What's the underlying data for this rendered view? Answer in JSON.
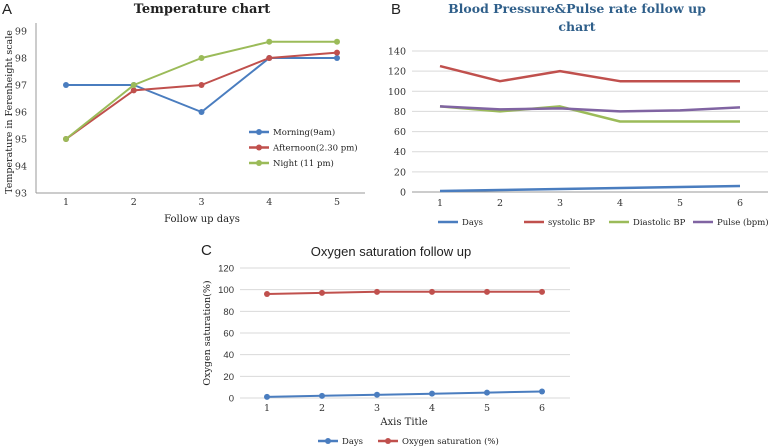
{
  "chart_data": [
    {
      "panel": "A",
      "type": "line",
      "title": "Temperature chart",
      "xlabel": "Follow up days",
      "ylabel": "Temperature in Ferenheight scale",
      "x": [
        1,
        2,
        3,
        4,
        5
      ],
      "ylim": [
        93,
        99
      ],
      "yticks": [
        93,
        94,
        95,
        96,
        97,
        98,
        99
      ],
      "legend_position": "center-right",
      "markers": true,
      "series": [
        {
          "name": "Morning(9am)",
          "color": "#4a7dbf",
          "values": [
            97,
            97,
            96,
            98,
            98
          ]
        },
        {
          "name": "Afternoon(2.30 pm)",
          "color": "#c0504d",
          "values": [
            95,
            96.8,
            97,
            98,
            98.2
          ]
        },
        {
          "name": "Night (11 pm)",
          "color": "#9bbb59",
          "values": [
            95,
            97,
            98,
            98.6,
            98.6
          ]
        }
      ]
    },
    {
      "panel": "B",
      "type": "line",
      "title": "Blood Pressure&Pulse rate follow up chart",
      "title_lines": [
        "Blood Pressure&Pulse rate follow up",
        "chart"
      ],
      "x": [
        1,
        2,
        3,
        4,
        5,
        6
      ],
      "ylim": [
        0,
        140
      ],
      "yticks": [
        0,
        20,
        40,
        60,
        80,
        100,
        120,
        140
      ],
      "grid": true,
      "legend_position": "bottom",
      "markers": false,
      "series": [
        {
          "name": "Days",
          "color": "#4a7dbf",
          "values": [
            1,
            2,
            3,
            4,
            5,
            6
          ]
        },
        {
          "name": "systolic BP",
          "color": "#c0504d",
          "values": [
            125,
            110,
            120,
            110,
            110,
            110
          ]
        },
        {
          "name": "Diastolic BP",
          "color": "#9bbb59",
          "values": [
            85,
            80,
            85,
            70,
            70,
            70
          ]
        },
        {
          "name": "Pulse (bpm)",
          "color": "#8064a2",
          "values": [
            85,
            82,
            83,
            80,
            81,
            84
          ]
        }
      ]
    },
    {
      "panel": "C",
      "type": "line",
      "title": "Oxygen saturation follow up",
      "xlabel": "Axis Title",
      "ylabel": "Oxygen saturation(%)",
      "x": [
        1,
        2,
        3,
        4,
        5,
        6
      ],
      "ylim": [
        0,
        120
      ],
      "yticks": [
        0,
        20,
        40,
        60,
        80,
        100,
        120
      ],
      "grid": true,
      "legend_position": "bottom",
      "markers": true,
      "series": [
        {
          "name": "Days",
          "color": "#4a7dbf",
          "values": [
            1,
            2,
            3,
            4,
            5,
            6
          ]
        },
        {
          "name": "Oxygen saturation (%)",
          "color": "#c0504d",
          "values": [
            96,
            97,
            98,
            98,
            98,
            98
          ]
        }
      ]
    }
  ]
}
